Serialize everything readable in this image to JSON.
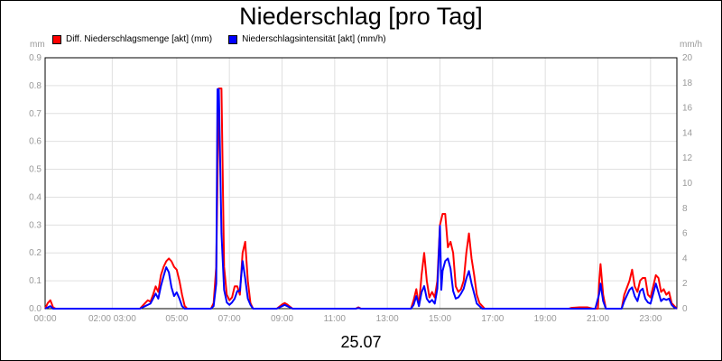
{
  "chart_data": {
    "type": "line",
    "title": "Niederschlag [pro Tag]",
    "date_label": "25.07",
    "y_left_unit": "mm",
    "y_right_unit": "mm/h",
    "y_left_range": [
      0,
      0.9
    ],
    "y_right_range": [
      0,
      20
    ],
    "y_left_ticks": [
      "0.0",
      "0.1",
      "0.2",
      "0.3",
      "0.4",
      "0.5",
      "0.6",
      "0.7",
      "0.8",
      "0.9"
    ],
    "y_right_ticks": [
      "0",
      "2",
      "4",
      "6",
      "8",
      "10",
      "12",
      "14",
      "16",
      "18",
      "20"
    ],
    "x_range": [
      0,
      24
    ],
    "x_ticks": [
      {
        "label": "00:00",
        "h": 0
      },
      {
        "label": "02:00 03:00",
        "h": 2.55
      },
      {
        "label": "05:00",
        "h": 5
      },
      {
        "label": "07:00",
        "h": 7
      },
      {
        "label": "09:00",
        "h": 9
      },
      {
        "label": "11:00",
        "h": 11
      },
      {
        "label": "13:00",
        "h": 13
      },
      {
        "label": "15:00",
        "h": 15
      },
      {
        "label": "17:00",
        "h": 17
      },
      {
        "label": "19:00",
        "h": 19
      },
      {
        "label": "21:00",
        "h": 21
      },
      {
        "label": "23:00",
        "h": 23
      }
    ],
    "grid": true,
    "legend_position": "top-left",
    "series": [
      {
        "name": "Diff. Niederschlagsmenge [akt] (mm)",
        "color": "#ff0000",
        "axis": "left",
        "points": [
          [
            0,
            0
          ],
          [
            0.1,
            0.02
          ],
          [
            0.2,
            0.03
          ],
          [
            0.3,
            0.005
          ],
          [
            0.4,
            0
          ],
          [
            3.6,
            0
          ],
          [
            3.8,
            0.02
          ],
          [
            3.9,
            0.03
          ],
          [
            4.0,
            0.025
          ],
          [
            4.1,
            0.05
          ],
          [
            4.2,
            0.08
          ],
          [
            4.3,
            0.06
          ],
          [
            4.4,
            0.12
          ],
          [
            4.5,
            0.15
          ],
          [
            4.6,
            0.17
          ],
          [
            4.7,
            0.18
          ],
          [
            4.8,
            0.17
          ],
          [
            4.9,
            0.15
          ],
          [
            5.0,
            0.14
          ],
          [
            5.1,
            0.1
          ],
          [
            5.2,
            0.05
          ],
          [
            5.3,
            0.01
          ],
          [
            5.4,
            0
          ],
          [
            6.3,
            0
          ],
          [
            6.4,
            0.02
          ],
          [
            6.5,
            0.15
          ],
          [
            6.6,
            0.79
          ],
          [
            6.7,
            0.79
          ],
          [
            6.8,
            0.15
          ],
          [
            6.9,
            0.05
          ],
          [
            7.0,
            0.03
          ],
          [
            7.1,
            0.04
          ],
          [
            7.2,
            0.08
          ],
          [
            7.3,
            0.08
          ],
          [
            7.4,
            0.05
          ],
          [
            7.5,
            0.2
          ],
          [
            7.6,
            0.24
          ],
          [
            7.7,
            0.1
          ],
          [
            7.8,
            0.02
          ],
          [
            7.9,
            0
          ],
          [
            8.8,
            0
          ],
          [
            9.0,
            0.015
          ],
          [
            9.1,
            0.02
          ],
          [
            9.2,
            0.015
          ],
          [
            9.4,
            0
          ],
          [
            11.8,
            0
          ],
          [
            11.9,
            0.005
          ],
          [
            12.0,
            0
          ],
          [
            13.9,
            0
          ],
          [
            14.0,
            0.03
          ],
          [
            14.1,
            0.07
          ],
          [
            14.2,
            0.01
          ],
          [
            14.3,
            0.12
          ],
          [
            14.4,
            0.2
          ],
          [
            14.5,
            0.1
          ],
          [
            14.6,
            0.04
          ],
          [
            14.7,
            0.06
          ],
          [
            14.8,
            0.04
          ],
          [
            14.9,
            0.1
          ],
          [
            15.0,
            0.3
          ],
          [
            15.1,
            0.34
          ],
          [
            15.2,
            0.34
          ],
          [
            15.3,
            0.22
          ],
          [
            15.4,
            0.24
          ],
          [
            15.5,
            0.2
          ],
          [
            15.6,
            0.08
          ],
          [
            15.7,
            0.06
          ],
          [
            15.8,
            0.07
          ],
          [
            15.9,
            0.1
          ],
          [
            16.0,
            0.2
          ],
          [
            16.1,
            0.27
          ],
          [
            16.2,
            0.18
          ],
          [
            16.3,
            0.12
          ],
          [
            16.4,
            0.05
          ],
          [
            16.5,
            0.02
          ],
          [
            16.6,
            0.01
          ],
          [
            16.7,
            0
          ],
          [
            19.9,
            0
          ],
          [
            20.0,
            0.003
          ],
          [
            20.3,
            0.005
          ],
          [
            20.6,
            0.005
          ],
          [
            20.8,
            0
          ],
          [
            21.0,
            0
          ],
          [
            21.05,
            0.1
          ],
          [
            21.1,
            0.16
          ],
          [
            21.2,
            0.05
          ],
          [
            21.3,
            0
          ],
          [
            21.9,
            0
          ],
          [
            22.0,
            0.05
          ],
          [
            22.2,
            0.1
          ],
          [
            22.3,
            0.14
          ],
          [
            22.4,
            0.08
          ],
          [
            22.5,
            0.06
          ],
          [
            22.6,
            0.1
          ],
          [
            22.7,
            0.11
          ],
          [
            22.8,
            0.11
          ],
          [
            22.9,
            0.05
          ],
          [
            23.0,
            0.04
          ],
          [
            23.1,
            0.08
          ],
          [
            23.2,
            0.12
          ],
          [
            23.3,
            0.11
          ],
          [
            23.4,
            0.06
          ],
          [
            23.5,
            0.07
          ],
          [
            23.6,
            0.05
          ],
          [
            23.7,
            0.06
          ],
          [
            23.8,
            0.02
          ],
          [
            23.9,
            0.01
          ],
          [
            24.0,
            0
          ]
        ]
      },
      {
        "name": "Niederschlagsintensität [akt] (mm/h)",
        "color": "#0000ff",
        "axis": "right",
        "points": [
          [
            0,
            0
          ],
          [
            0.2,
            0.2
          ],
          [
            0.3,
            0
          ],
          [
            3.6,
            0
          ],
          [
            3.8,
            0.2
          ],
          [
            4.0,
            0.4
          ],
          [
            4.1,
            0.8
          ],
          [
            4.2,
            1.2
          ],
          [
            4.3,
            0.8
          ],
          [
            4.4,
            1.8
          ],
          [
            4.5,
            2.6
          ],
          [
            4.6,
            3.3
          ],
          [
            4.7,
            2.9
          ],
          [
            4.8,
            1.7
          ],
          [
            4.9,
            1.0
          ],
          [
            5.0,
            1.3
          ],
          [
            5.1,
            0.8
          ],
          [
            5.2,
            0.2
          ],
          [
            5.3,
            0
          ],
          [
            6.3,
            0
          ],
          [
            6.4,
            0.2
          ],
          [
            6.5,
            2.0
          ],
          [
            6.55,
            17.5
          ],
          [
            6.6,
            17.5
          ],
          [
            6.7,
            6.0
          ],
          [
            6.8,
            1.5
          ],
          [
            6.9,
            0.5
          ],
          [
            7.0,
            0.3
          ],
          [
            7.1,
            0.5
          ],
          [
            7.2,
            0.8
          ],
          [
            7.3,
            1.4
          ],
          [
            7.4,
            1.4
          ],
          [
            7.5,
            3.8
          ],
          [
            7.6,
            2.4
          ],
          [
            7.7,
            0.8
          ],
          [
            7.8,
            0.3
          ],
          [
            7.9,
            0
          ],
          [
            8.8,
            0
          ],
          [
            9.0,
            0.2
          ],
          [
            9.1,
            0.3
          ],
          [
            9.2,
            0.2
          ],
          [
            9.4,
            0
          ],
          [
            11.8,
            0
          ],
          [
            11.9,
            0.05
          ],
          [
            12.0,
            0
          ],
          [
            13.9,
            0
          ],
          [
            14.0,
            0.3
          ],
          [
            14.1,
            1.0
          ],
          [
            14.2,
            0.2
          ],
          [
            14.3,
            1.3
          ],
          [
            14.4,
            1.8
          ],
          [
            14.5,
            0.8
          ],
          [
            14.6,
            0.5
          ],
          [
            14.7,
            0.7
          ],
          [
            14.8,
            0.4
          ],
          [
            14.9,
            1.6
          ],
          [
            15.0,
            6.6
          ],
          [
            15.05,
            1.5
          ],
          [
            15.1,
            3.0
          ],
          [
            15.2,
            3.8
          ],
          [
            15.3,
            4.0
          ],
          [
            15.4,
            3.2
          ],
          [
            15.5,
            1.4
          ],
          [
            15.6,
            0.8
          ],
          [
            15.7,
            0.9
          ],
          [
            15.8,
            1.2
          ],
          [
            15.9,
            1.6
          ],
          [
            16.0,
            2.4
          ],
          [
            16.1,
            3.0
          ],
          [
            16.2,
            2.0
          ],
          [
            16.3,
            1.2
          ],
          [
            16.4,
            0.4
          ],
          [
            16.5,
            0.2
          ],
          [
            16.6,
            0
          ],
          [
            20.9,
            0
          ],
          [
            21.05,
            1.2
          ],
          [
            21.1,
            2.0
          ],
          [
            21.2,
            0.6
          ],
          [
            21.3,
            0
          ],
          [
            21.9,
            0
          ],
          [
            22.0,
            0.6
          ],
          [
            22.2,
            1.5
          ],
          [
            22.3,
            1.7
          ],
          [
            22.4,
            1.0
          ],
          [
            22.5,
            0.6
          ],
          [
            22.6,
            1.4
          ],
          [
            22.7,
            1.6
          ],
          [
            22.8,
            0.8
          ],
          [
            22.9,
            0.5
          ],
          [
            23.0,
            0.4
          ],
          [
            23.1,
            1.2
          ],
          [
            23.2,
            2.0
          ],
          [
            23.3,
            1.3
          ],
          [
            23.4,
            0.6
          ],
          [
            23.5,
            0.8
          ],
          [
            23.6,
            0.7
          ],
          [
            23.7,
            0.8
          ],
          [
            23.8,
            0.3
          ],
          [
            23.9,
            0.1
          ],
          [
            24.0,
            0
          ]
        ]
      }
    ]
  }
}
